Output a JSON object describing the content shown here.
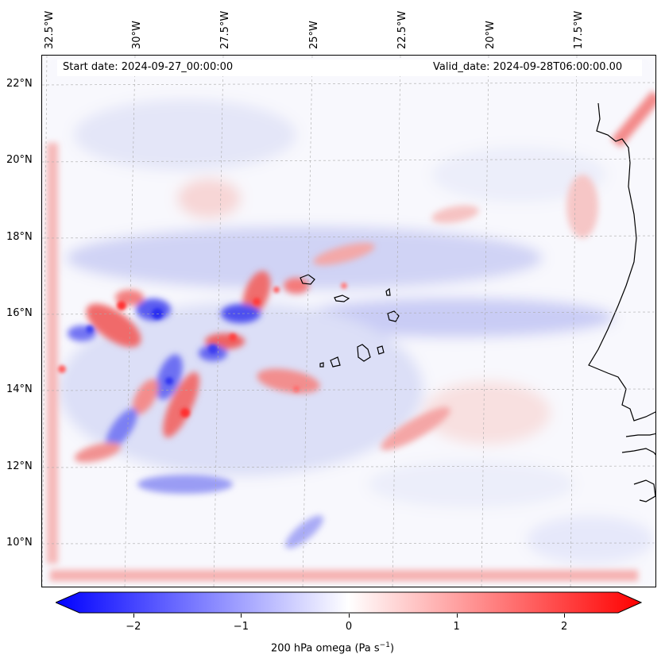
{
  "map": {
    "start_date": "Start date: 2024-09-27_00:00:00",
    "valid_date": "Valid_date: 2024-09-28T06:00:00.00",
    "lon_labels": [
      "32.5°W",
      "30°W",
      "27.5°W",
      "25°W",
      "22.5°W",
      "20°W",
      "17.5°W"
    ],
    "lat_labels": [
      "22°N",
      "20°N",
      "18°N",
      "16°N",
      "14°N",
      "12°N",
      "10°N"
    ],
    "colors": {
      "negative": "#0000ff",
      "neutral": "#ffffff",
      "positive": "#ff0000"
    }
  },
  "colorbar": {
    "ticks": [
      "−2",
      "−1",
      "0",
      "1",
      "2"
    ],
    "tick_values": [
      -2,
      -1,
      0,
      1,
      2
    ],
    "range": [
      -2.75,
      2.75
    ],
    "label_main": "200 hPa omega (Pa s",
    "label_sup": "−1",
    "label_end": ")"
  }
}
